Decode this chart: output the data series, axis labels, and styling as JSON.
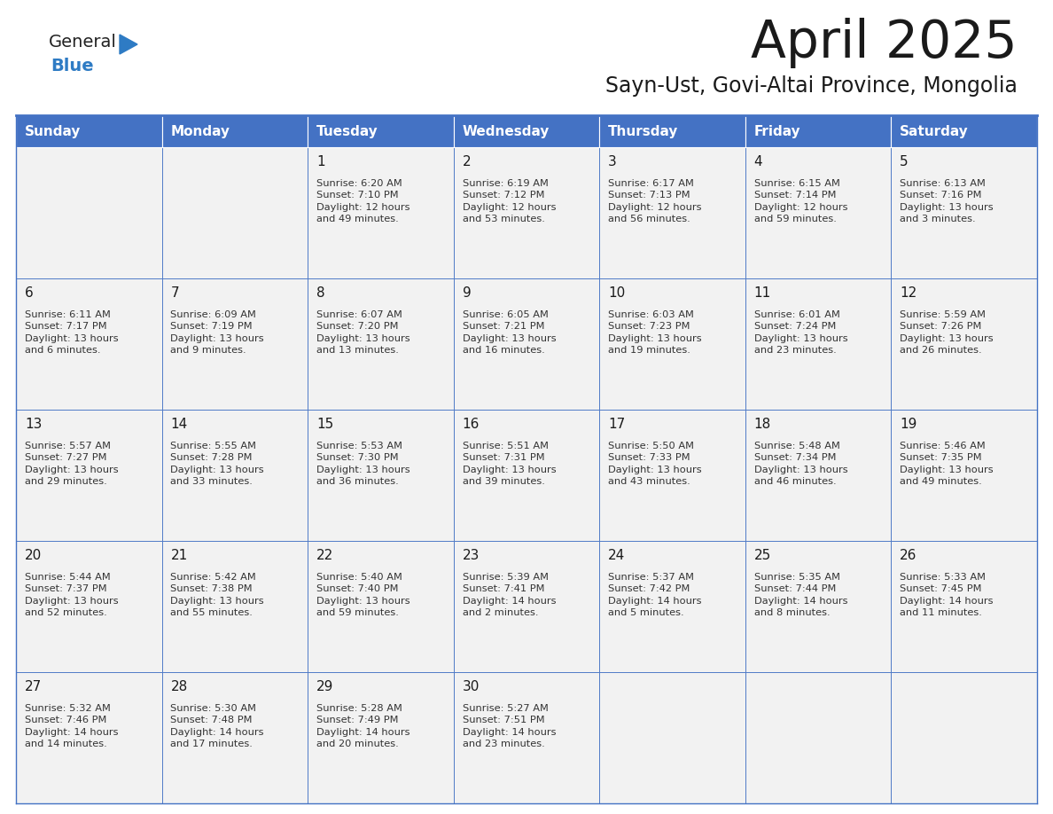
{
  "title": "April 2025",
  "subtitle": "Sayn-Ust, Govi-Altai Province, Mongolia",
  "days_of_week": [
    "Sunday",
    "Monday",
    "Tuesday",
    "Wednesday",
    "Thursday",
    "Friday",
    "Saturday"
  ],
  "header_bg": "#4472c4",
  "header_text": "#ffffff",
  "cell_bg": "#f2f2f2",
  "border_color": "#4472c4",
  "text_color": "#333333",
  "title_color": "#1a1a1a",
  "logo_dark": "#1a1a1a",
  "logo_blue": "#2e7bc4",
  "weeks": [
    [
      {
        "day": null,
        "info": null
      },
      {
        "day": null,
        "info": null
      },
      {
        "day": 1,
        "info": "Sunrise: 6:20 AM\nSunset: 7:10 PM\nDaylight: 12 hours\nand 49 minutes."
      },
      {
        "day": 2,
        "info": "Sunrise: 6:19 AM\nSunset: 7:12 PM\nDaylight: 12 hours\nand 53 minutes."
      },
      {
        "day": 3,
        "info": "Sunrise: 6:17 AM\nSunset: 7:13 PM\nDaylight: 12 hours\nand 56 minutes."
      },
      {
        "day": 4,
        "info": "Sunrise: 6:15 AM\nSunset: 7:14 PM\nDaylight: 12 hours\nand 59 minutes."
      },
      {
        "day": 5,
        "info": "Sunrise: 6:13 AM\nSunset: 7:16 PM\nDaylight: 13 hours\nand 3 minutes."
      }
    ],
    [
      {
        "day": 6,
        "info": "Sunrise: 6:11 AM\nSunset: 7:17 PM\nDaylight: 13 hours\nand 6 minutes."
      },
      {
        "day": 7,
        "info": "Sunrise: 6:09 AM\nSunset: 7:19 PM\nDaylight: 13 hours\nand 9 minutes."
      },
      {
        "day": 8,
        "info": "Sunrise: 6:07 AM\nSunset: 7:20 PM\nDaylight: 13 hours\nand 13 minutes."
      },
      {
        "day": 9,
        "info": "Sunrise: 6:05 AM\nSunset: 7:21 PM\nDaylight: 13 hours\nand 16 minutes."
      },
      {
        "day": 10,
        "info": "Sunrise: 6:03 AM\nSunset: 7:23 PM\nDaylight: 13 hours\nand 19 minutes."
      },
      {
        "day": 11,
        "info": "Sunrise: 6:01 AM\nSunset: 7:24 PM\nDaylight: 13 hours\nand 23 minutes."
      },
      {
        "day": 12,
        "info": "Sunrise: 5:59 AM\nSunset: 7:26 PM\nDaylight: 13 hours\nand 26 minutes."
      }
    ],
    [
      {
        "day": 13,
        "info": "Sunrise: 5:57 AM\nSunset: 7:27 PM\nDaylight: 13 hours\nand 29 minutes."
      },
      {
        "day": 14,
        "info": "Sunrise: 5:55 AM\nSunset: 7:28 PM\nDaylight: 13 hours\nand 33 minutes."
      },
      {
        "day": 15,
        "info": "Sunrise: 5:53 AM\nSunset: 7:30 PM\nDaylight: 13 hours\nand 36 minutes."
      },
      {
        "day": 16,
        "info": "Sunrise: 5:51 AM\nSunset: 7:31 PM\nDaylight: 13 hours\nand 39 minutes."
      },
      {
        "day": 17,
        "info": "Sunrise: 5:50 AM\nSunset: 7:33 PM\nDaylight: 13 hours\nand 43 minutes."
      },
      {
        "day": 18,
        "info": "Sunrise: 5:48 AM\nSunset: 7:34 PM\nDaylight: 13 hours\nand 46 minutes."
      },
      {
        "day": 19,
        "info": "Sunrise: 5:46 AM\nSunset: 7:35 PM\nDaylight: 13 hours\nand 49 minutes."
      }
    ],
    [
      {
        "day": 20,
        "info": "Sunrise: 5:44 AM\nSunset: 7:37 PM\nDaylight: 13 hours\nand 52 minutes."
      },
      {
        "day": 21,
        "info": "Sunrise: 5:42 AM\nSunset: 7:38 PM\nDaylight: 13 hours\nand 55 minutes."
      },
      {
        "day": 22,
        "info": "Sunrise: 5:40 AM\nSunset: 7:40 PM\nDaylight: 13 hours\nand 59 minutes."
      },
      {
        "day": 23,
        "info": "Sunrise: 5:39 AM\nSunset: 7:41 PM\nDaylight: 14 hours\nand 2 minutes."
      },
      {
        "day": 24,
        "info": "Sunrise: 5:37 AM\nSunset: 7:42 PM\nDaylight: 14 hours\nand 5 minutes."
      },
      {
        "day": 25,
        "info": "Sunrise: 5:35 AM\nSunset: 7:44 PM\nDaylight: 14 hours\nand 8 minutes."
      },
      {
        "day": 26,
        "info": "Sunrise: 5:33 AM\nSunset: 7:45 PM\nDaylight: 14 hours\nand 11 minutes."
      }
    ],
    [
      {
        "day": 27,
        "info": "Sunrise: 5:32 AM\nSunset: 7:46 PM\nDaylight: 14 hours\nand 14 minutes."
      },
      {
        "day": 28,
        "info": "Sunrise: 5:30 AM\nSunset: 7:48 PM\nDaylight: 14 hours\nand 17 minutes."
      },
      {
        "day": 29,
        "info": "Sunrise: 5:28 AM\nSunset: 7:49 PM\nDaylight: 14 hours\nand 20 minutes."
      },
      {
        "day": 30,
        "info": "Sunrise: 5:27 AM\nSunset: 7:51 PM\nDaylight: 14 hours\nand 23 minutes."
      },
      {
        "day": null,
        "info": null
      },
      {
        "day": null,
        "info": null
      },
      {
        "day": null,
        "info": null
      }
    ]
  ]
}
